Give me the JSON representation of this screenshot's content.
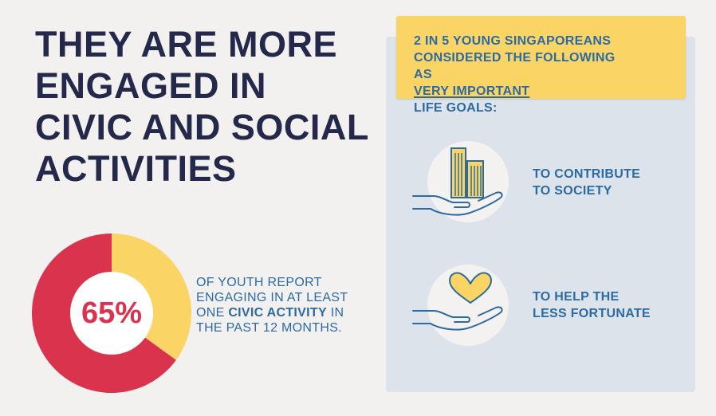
{
  "headline": {
    "lines": [
      "THEY ARE MORE",
      "ENGAGED IN",
      "CIVIC AND SOCIAL",
      "ACTIVITIES"
    ]
  },
  "stat": {
    "percent_label": "65%",
    "percent_value": 65,
    "text_line1": "OF YOUTH REPORT",
    "text_line2": "ENGAGING IN AT LEAST",
    "text_line3_prefix": "ONE ",
    "text_line3_bold": "CIVIC ACTIVITY",
    "text_line3_suffix": " IN",
    "text_line4": "THE PAST 12 MONTHS."
  },
  "goals_panel": {
    "banner_line1": "2 IN 5 YOUNG SINGAPOREANS",
    "banner_line2": "CONSIDERED THE FOLLOWING",
    "banner_line3_prefix": "AS ",
    "banner_line3_underlined": "VERY IMPORTANT",
    "banner_line3_suffix": " LIFE GOALS:",
    "goals": [
      {
        "line1": "TO CONTRIBUTE",
        "line2": "TO SOCIETY",
        "icon": "hand-holding-buildings-icon"
      },
      {
        "line1": "TO HELP THE",
        "line2": "LESS FORTUNATE",
        "icon": "hand-holding-heart-icon"
      }
    ]
  },
  "colors": {
    "headline": "#24294b",
    "accent_blue": "#2c6aa2",
    "donut_red": "#d9334e",
    "donut_yellow": "#fad566",
    "panel_bg": "#dde3ea"
  }
}
